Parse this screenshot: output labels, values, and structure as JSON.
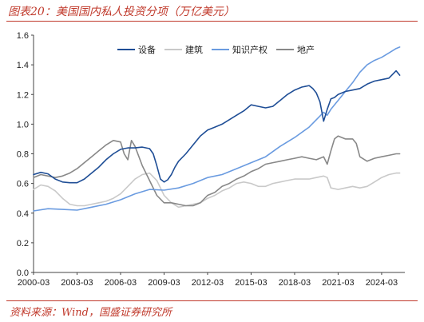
{
  "title": "图表20：美国国内私人投资分项（万亿美元）",
  "source": "资料来源：Wind，国盛证券研究所",
  "chart_data": {
    "type": "line",
    "title": "图表20：美国国内私人投资分项（万亿美元）",
    "xlabel": "",
    "ylabel": "",
    "ylim": [
      0.0,
      1.6
    ],
    "yticks": [
      "0.0",
      "0.2",
      "0.4",
      "0.6",
      "0.8",
      "1.0",
      "1.2",
      "1.4",
      "1.6"
    ],
    "xlim": [
      2000.0,
      2025.6
    ],
    "xticks": [
      "2000-03",
      "2003-03",
      "2006-03",
      "2009-03",
      "2012-03",
      "2015-03",
      "2018-03",
      "2021-03",
      "2024-03"
    ],
    "grid": false,
    "legend": "top-center",
    "series": [
      {
        "name": "设备",
        "color": "#1f4e96",
        "x": [
          2000.0,
          2000.5,
          2001.0,
          2001.5,
          2002.0,
          2002.5,
          2003.0,
          2003.5,
          2004.0,
          2004.5,
          2005.0,
          2005.5,
          2006.0,
          2006.5,
          2007.0,
          2007.5,
          2008.0,
          2008.25,
          2008.5,
          2008.75,
          2009.0,
          2009.25,
          2009.5,
          2009.75,
          2010.0,
          2010.5,
          2011.0,
          2011.5,
          2012.0,
          2012.5,
          2013.0,
          2013.5,
          2014.0,
          2014.5,
          2015.0,
          2015.5,
          2016.0,
          2016.5,
          2017.0,
          2017.5,
          2018.0,
          2018.5,
          2019.0,
          2019.25,
          2019.5,
          2019.75,
          2020.0,
          2020.25,
          2020.5,
          2020.75,
          2021.0,
          2021.5,
          2022.0,
          2022.5,
          2023.0,
          2023.5,
          2024.0,
          2024.5,
          2025.0,
          2025.25
        ],
        "values": [
          0.66,
          0.675,
          0.665,
          0.63,
          0.61,
          0.605,
          0.605,
          0.63,
          0.67,
          0.71,
          0.76,
          0.8,
          0.83,
          0.84,
          0.84,
          0.845,
          0.835,
          0.8,
          0.72,
          0.63,
          0.61,
          0.625,
          0.66,
          0.71,
          0.75,
          0.8,
          0.86,
          0.92,
          0.96,
          0.98,
          1.0,
          1.03,
          1.06,
          1.09,
          1.13,
          1.12,
          1.11,
          1.12,
          1.16,
          1.2,
          1.23,
          1.25,
          1.26,
          1.24,
          1.21,
          1.15,
          1.02,
          1.1,
          1.17,
          1.18,
          1.2,
          1.22,
          1.23,
          1.24,
          1.27,
          1.29,
          1.3,
          1.31,
          1.36,
          1.33
        ]
      },
      {
        "name": "建筑",
        "color": "#c9c9c9",
        "x": [
          2000.0,
          2000.5,
          2001.0,
          2001.5,
          2002.0,
          2002.5,
          2003.0,
          2003.5,
          2004.0,
          2004.5,
          2005.0,
          2005.5,
          2006.0,
          2006.5,
          2007.0,
          2007.5,
          2008.0,
          2008.5,
          2009.0,
          2009.5,
          2010.0,
          2010.5,
          2011.0,
          2011.5,
          2012.0,
          2012.5,
          2013.0,
          2013.5,
          2014.0,
          2014.5,
          2015.0,
          2015.5,
          2016.0,
          2016.5,
          2017.0,
          2017.5,
          2018.0,
          2018.5,
          2019.0,
          2019.5,
          2020.0,
          2020.25,
          2020.5,
          2021.0,
          2021.5,
          2022.0,
          2022.5,
          2023.0,
          2023.5,
          2024.0,
          2024.5,
          2025.0,
          2025.25
        ],
        "values": [
          0.56,
          0.59,
          0.58,
          0.55,
          0.5,
          0.46,
          0.45,
          0.45,
          0.46,
          0.47,
          0.48,
          0.5,
          0.53,
          0.58,
          0.63,
          0.66,
          0.67,
          0.62,
          0.52,
          0.47,
          0.44,
          0.45,
          0.46,
          0.47,
          0.5,
          0.52,
          0.55,
          0.57,
          0.6,
          0.61,
          0.6,
          0.58,
          0.58,
          0.6,
          0.61,
          0.62,
          0.63,
          0.63,
          0.63,
          0.64,
          0.65,
          0.64,
          0.57,
          0.56,
          0.57,
          0.58,
          0.57,
          0.58,
          0.61,
          0.64,
          0.66,
          0.67,
          0.67
        ]
      },
      {
        "name": "知识产权",
        "color": "#6a9be0",
        "x": [
          2000.0,
          2001.0,
          2002.0,
          2003.0,
          2004.0,
          2005.0,
          2006.0,
          2007.0,
          2008.0,
          2009.0,
          2010.0,
          2011.0,
          2012.0,
          2013.0,
          2014.0,
          2015.0,
          2016.0,
          2017.0,
          2018.0,
          2019.0,
          2019.5,
          2020.0,
          2020.25,
          2020.5,
          2021.0,
          2021.5,
          2022.0,
          2022.5,
          2023.0,
          2023.5,
          2024.0,
          2024.5,
          2025.0,
          2025.25
        ],
        "values": [
          0.415,
          0.43,
          0.425,
          0.42,
          0.44,
          0.46,
          0.49,
          0.53,
          0.56,
          0.555,
          0.57,
          0.6,
          0.64,
          0.66,
          0.7,
          0.74,
          0.78,
          0.85,
          0.91,
          0.98,
          1.03,
          1.08,
          1.06,
          1.1,
          1.16,
          1.22,
          1.28,
          1.35,
          1.4,
          1.43,
          1.45,
          1.48,
          1.51,
          1.52
        ]
      },
      {
        "name": "地产",
        "color": "#888888",
        "x": [
          2000.0,
          2000.5,
          2001.0,
          2001.5,
          2002.0,
          2002.5,
          2003.0,
          2003.5,
          2004.0,
          2004.5,
          2005.0,
          2005.5,
          2006.0,
          2006.25,
          2006.5,
          2006.75,
          2007.0,
          2007.5,
          2008.0,
          2008.5,
          2009.0,
          2009.5,
          2010.0,
          2010.5,
          2011.0,
          2011.5,
          2012.0,
          2012.5,
          2013.0,
          2013.5,
          2014.0,
          2014.5,
          2015.0,
          2015.5,
          2016.0,
          2016.5,
          2017.0,
          2017.5,
          2018.0,
          2018.5,
          2019.0,
          2019.5,
          2020.0,
          2020.25,
          2020.5,
          2020.75,
          2021.0,
          2021.5,
          2022.0,
          2022.25,
          2022.5,
          2023.0,
          2023.5,
          2024.0,
          2024.5,
          2025.0,
          2025.25
        ],
        "values": [
          0.64,
          0.66,
          0.65,
          0.64,
          0.65,
          0.67,
          0.7,
          0.74,
          0.78,
          0.82,
          0.86,
          0.89,
          0.88,
          0.8,
          0.76,
          0.89,
          0.85,
          0.72,
          0.62,
          0.52,
          0.47,
          0.47,
          0.46,
          0.45,
          0.45,
          0.47,
          0.52,
          0.54,
          0.58,
          0.6,
          0.63,
          0.65,
          0.68,
          0.7,
          0.73,
          0.74,
          0.75,
          0.76,
          0.77,
          0.78,
          0.77,
          0.76,
          0.78,
          0.73,
          0.82,
          0.9,
          0.92,
          0.9,
          0.9,
          0.87,
          0.78,
          0.75,
          0.77,
          0.78,
          0.79,
          0.8,
          0.8
        ]
      }
    ]
  }
}
